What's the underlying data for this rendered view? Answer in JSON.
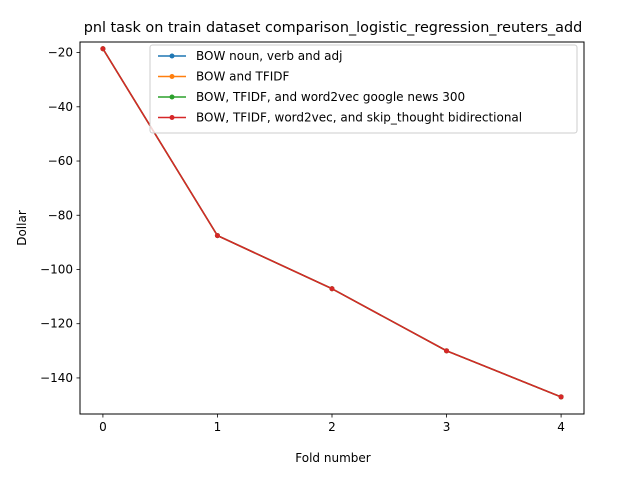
{
  "chart_data": {
    "type": "line",
    "title": "pnl task on train dataset comparison_logistic_regression_reuters_add",
    "xlabel": "Fold number",
    "ylabel": "Dollar",
    "x": [
      0,
      1,
      2,
      3,
      4
    ],
    "xticks": [
      0,
      1,
      2,
      3,
      4
    ],
    "yticks": [
      -20,
      -40,
      -60,
      -80,
      -100,
      -120,
      -140
    ],
    "xlim": [
      -0.2,
      4.2
    ],
    "ylim": [
      -153.3,
      -16.1
    ],
    "grid": false,
    "legend_position": "top-right",
    "series": [
      {
        "name": "BOW noun, verb and adj",
        "color": "#1f77b4",
        "values": [
          -18.6,
          -87.5,
          -107.1,
          -130.0,
          -147.0
        ]
      },
      {
        "name": "BOW and TFIDF",
        "color": "#ff7f0e",
        "values": [
          -18.6,
          -87.5,
          -107.1,
          -130.0,
          -147.0
        ]
      },
      {
        "name": "BOW, TFIDF, and word2vec google news 300",
        "color": "#2ca02c",
        "values": [
          -18.6,
          -87.5,
          -107.1,
          -130.0,
          -147.0
        ]
      },
      {
        "name": "BOW, TFIDF, word2vec, and skip_thought bidirectional",
        "color": "#d62728",
        "values": [
          -18.6,
          -87.5,
          -107.1,
          -130.0,
          -147.0
        ]
      }
    ]
  }
}
